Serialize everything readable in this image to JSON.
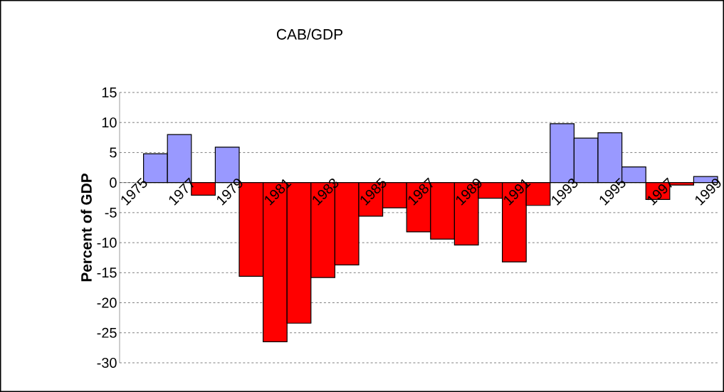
{
  "chart_data": {
    "type": "bar",
    "title": "CAB/GDP",
    "ylabel": "Percent of GDP",
    "categories": [
      "1975",
      null,
      "1977",
      null,
      "1979",
      null,
      "1981",
      null,
      "1983",
      null,
      "1985",
      null,
      "1987",
      null,
      "1989",
      null,
      "1991",
      null,
      "1993",
      null,
      "1995",
      null,
      "1997",
      null,
      "1999"
    ],
    "values": [
      null,
      4.8,
      8.0,
      -2.1,
      5.9,
      -15.6,
      -26.5,
      -23.4,
      -15.8,
      -13.7,
      -5.6,
      -4.2,
      -8.2,
      -9.4,
      -10.4,
      -2.6,
      -13.2,
      -3.8,
      9.8,
      7.4,
      8.3,
      2.6,
      -2.8,
      -0.4,
      1.0
    ],
    "colors": [
      null,
      "#9999ff",
      "#9999ff",
      "#ff0000",
      "#9999ff",
      "#ff0000",
      "#ff0000",
      "#ff0000",
      "#ff0000",
      "#ff0000",
      "#ff0000",
      "#ff0000",
      "#ff0000",
      "#ff0000",
      "#ff0000",
      "#ff0000",
      "#ff0000",
      "#ff0000",
      "#9999ff",
      "#9999ff",
      "#9999ff",
      "#9999ff",
      "#ff0000",
      "#ff0000",
      "#9999ff"
    ],
    "ylim": [
      -30,
      15
    ],
    "yticks": [
      -30,
      -25,
      -20,
      -15,
      -10,
      -5,
      0,
      5,
      10,
      15
    ],
    "grid": "y"
  }
}
